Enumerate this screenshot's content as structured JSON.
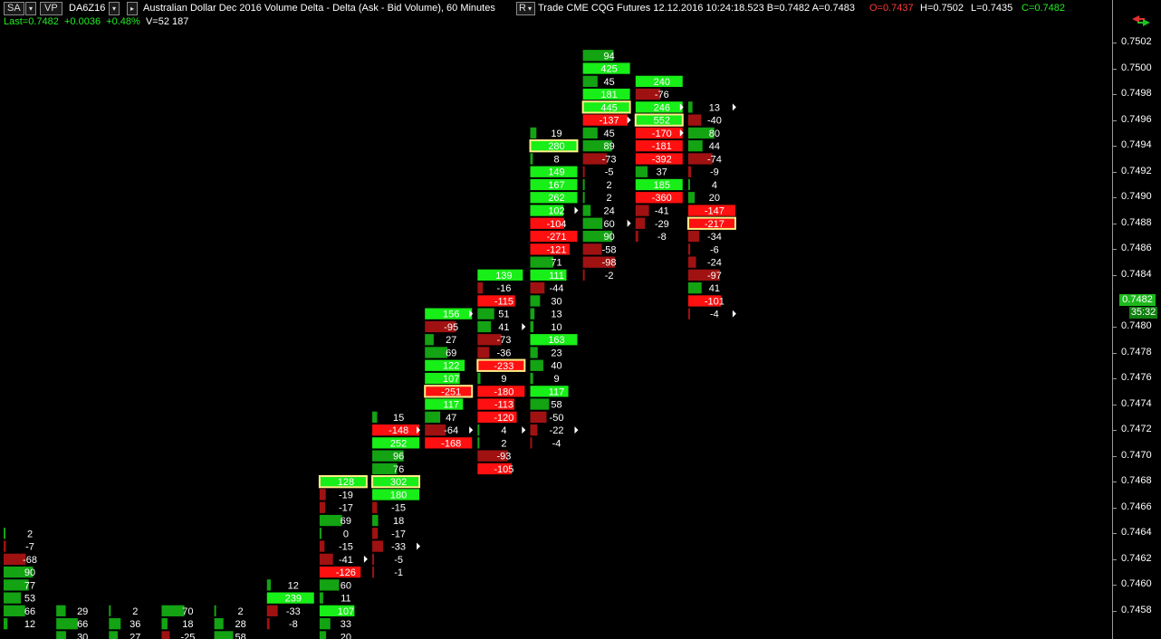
{
  "header": {
    "sa_label": "SA",
    "vp_label": "VP",
    "symbol": "DA6Z16",
    "title": "Australian Dollar Dec 2016  Volume Delta - Delta (Ask - Bid Volume), 60 Minutes",
    "r_label": "R",
    "info": "Trade  CME  CQG  Futures  12.12.2016   10:24:18.523  B=0.7482  A=0.7483",
    "open": "O=0.7437",
    "high": "H=0.7502",
    "low": "L=0.7435",
    "close": "C=0.7482"
  },
  "summary": {
    "last": "Last=0.7482",
    "change": "+0.0036",
    "pct": "+0.48%",
    "volume": "V=52 187"
  },
  "axis": {
    "last_price": "0.7482",
    "timer": "35:32"
  },
  "chart_data": {
    "type": "footprint",
    "tick_size": 0.0001,
    "y_ticks": [
      0.7458,
      0.746,
      0.7462,
      0.7464,
      0.7466,
      0.7468,
      0.747,
      0.7472,
      0.7474,
      0.7476,
      0.7478,
      0.748,
      0.7484,
      0.7486,
      0.7488,
      0.749,
      0.7492,
      0.7494,
      0.7496,
      0.7498,
      0.75,
      0.7502
    ],
    "y_tick_labels": [
      "0.7458",
      "0.7460",
      "0.7462",
      "0.7464",
      "0.7466",
      "0.7468",
      "0.7470",
      "0.7472",
      "0.7474",
      "0.7476",
      "0.7478",
      "0.7480",
      "0.7484",
      "0.7486",
      "0.7488",
      "0.7490",
      "0.7492",
      "0.7494",
      "0.7496",
      "0.7498",
      "0.7500",
      "0.7502"
    ],
    "ylim": [
      0.7456,
      0.7503
    ],
    "bars": [
      {
        "top": 0.7464,
        "values": [
          2,
          -7,
          -68,
          90,
          77,
          53,
          66,
          12
        ]
      },
      {
        "top": 0.7458,
        "values": [
          29,
          66,
          30
        ]
      },
      {
        "top": 0.7458,
        "values": [
          2,
          36,
          27
        ]
      },
      {
        "top": 0.7458,
        "values": [
          70,
          18,
          -25
        ]
      },
      {
        "top": 0.7458,
        "values": [
          2,
          28,
          58
        ]
      },
      {
        "top": 0.746,
        "values": [
          12,
          239,
          -33,
          -8
        ]
      },
      {
        "top": 0.7468,
        "values": [
          128,
          -19,
          -17,
          69,
          0,
          -15,
          -41,
          -126,
          60,
          11,
          107,
          33,
          20
        ],
        "highlight": [
          0
        ],
        "marker": [
          6
        ]
      },
      {
        "top": 0.7473,
        "values": [
          15,
          -148,
          252,
          96,
          76,
          302,
          180,
          -15,
          18,
          -17,
          -33,
          -5,
          -1
        ],
        "highlight": [
          5
        ],
        "marker": [
          1,
          10
        ]
      },
      {
        "top": 0.7481,
        "values": [
          156,
          -95,
          27,
          69,
          122,
          107,
          -251,
          117,
          47,
          -64,
          -168
        ],
        "highlight": [
          6
        ],
        "marker": [
          0,
          9
        ]
      },
      {
        "top": 0.7484,
        "values": [
          139,
          -16,
          -115,
          51,
          41,
          -73,
          -36,
          -233,
          9,
          -180,
          -113,
          -120,
          4,
          2,
          -93,
          -105
        ],
        "highlight": [
          7
        ],
        "marker": [
          4,
          12
        ]
      },
      {
        "top": 0.7495,
        "values": [
          19,
          280,
          8,
          149,
          167,
          262,
          102,
          -104,
          -271,
          -121,
          71,
          111,
          -44,
          30,
          13,
          10,
          163,
          23,
          40,
          9,
          117,
          58,
          -50,
          -22,
          -4
        ],
        "highlight": [
          1
        ],
        "marker": [
          6,
          23
        ]
      },
      {
        "top": 0.7501,
        "values": [
          94,
          425,
          45,
          181,
          445,
          -137,
          45,
          89,
          -73,
          -5,
          2,
          2,
          24,
          60,
          90,
          -58,
          -98,
          -2
        ],
        "highlight": [
          4
        ],
        "marker": [
          5,
          13
        ]
      },
      {
        "top": 0.7499,
        "values": [
          240,
          -76,
          246,
          552,
          -170,
          -181,
          -392,
          37,
          185,
          -360,
          -41,
          -29,
          -8
        ],
        "highlight": [
          3
        ],
        "marker": [
          2,
          4
        ]
      },
      {
        "top": 0.7497,
        "values": [
          13,
          -40,
          80,
          44,
          -74,
          -9,
          4,
          20,
          -147,
          -217,
          -34,
          -6,
          -24,
          -97,
          41,
          -101,
          -4
        ],
        "highlight": [
          9
        ],
        "marker": [
          0,
          16
        ]
      }
    ],
    "colors": {
      "strong_up": "#18ee18",
      "weak_up": "#13a313",
      "strong_down": "#ff1010",
      "weak_down": "#a01212",
      "highlight": "#ffee88"
    }
  }
}
